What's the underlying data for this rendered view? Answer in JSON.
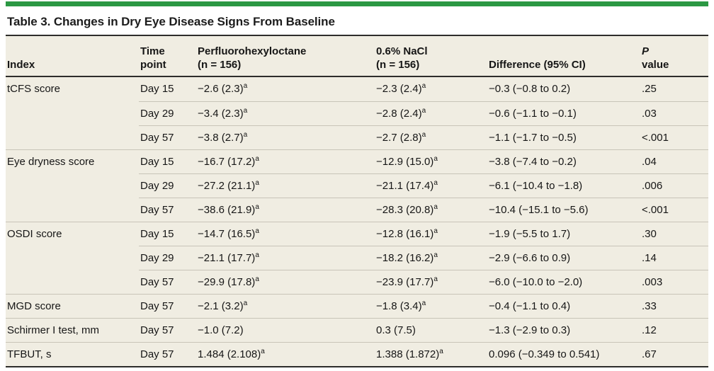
{
  "title": "Table 3. Changes in Dry Eye Disease Signs From Baseline",
  "accent_color": "#2b9843",
  "table_background": "#f0ede2",
  "header": {
    "index": "Index",
    "time_line1": "Time",
    "time_line2": "point",
    "pfho_line1": "Perfluorohexyloctane",
    "pfho_line2": "(n = 156)",
    "nacl_line1": "0.6% NaCl",
    "nacl_line2": "(n = 156)",
    "diff": "Difference (95% CI)",
    "p_italic": "P",
    "p_rest": " value"
  },
  "rows": [
    {
      "index": "tCFS score",
      "time": "Day 15",
      "pfho": {
        "v": "−2.6 (2.3)",
        "sup": "a"
      },
      "nacl": {
        "v": "−2.3 (2.4)",
        "sup": "a"
      },
      "diff": "−0.3 (−0.8 to 0.2)",
      "p": ".25"
    },
    {
      "index": "",
      "time": "Day 29",
      "pfho": {
        "v": "−3.4 (2.3)",
        "sup": "a"
      },
      "nacl": {
        "v": "−2.8 (2.4)",
        "sup": "a"
      },
      "diff": "−0.6 (−1.1 to −0.1)",
      "p": ".03"
    },
    {
      "index": "",
      "time": "Day 57",
      "pfho": {
        "v": "−3.8 (2.7)",
        "sup": "a"
      },
      "nacl": {
        "v": "−2.7 (2.8)",
        "sup": "a"
      },
      "diff": "−1.1 (−1.7 to −0.5)",
      "p": "<.001"
    },
    {
      "index": "Eye dryness score",
      "time": "Day 15",
      "pfho": {
        "v": "−16.7 (17.2)",
        "sup": "a"
      },
      "nacl": {
        "v": "−12.9 (15.0)",
        "sup": "a"
      },
      "diff": "−3.8 (−7.4 to −0.2)",
      "p": ".04"
    },
    {
      "index": "",
      "time": "Day 29",
      "pfho": {
        "v": "−27.2 (21.1)",
        "sup": "a"
      },
      "nacl": {
        "v": "−21.1 (17.4)",
        "sup": "a"
      },
      "diff": "−6.1 (−10.4 to −1.8)",
      "p": ".006"
    },
    {
      "index": "",
      "time": "Day 57",
      "pfho": {
        "v": "−38.6 (21.9)",
        "sup": "a"
      },
      "nacl": {
        "v": "−28.3 (20.8)",
        "sup": "a"
      },
      "diff": "−10.4 (−15.1 to −5.6)",
      "p": "<.001"
    },
    {
      "index": "OSDI score",
      "time": "Day 15",
      "pfho": {
        "v": "−14.7 (16.5)",
        "sup": "a"
      },
      "nacl": {
        "v": "−12.8 (16.1)",
        "sup": "a"
      },
      "diff": "−1.9 (−5.5 to 1.7)",
      "p": ".30"
    },
    {
      "index": "",
      "time": "Day 29",
      "pfho": {
        "v": "−21.1 (17.7)",
        "sup": "a"
      },
      "nacl": {
        "v": "−18.2 (16.2)",
        "sup": "a"
      },
      "diff": "−2.9 (−6.6 to 0.9)",
      "p": ".14"
    },
    {
      "index": "",
      "time": "Day 57",
      "pfho": {
        "v": "−29.9 (17.8)",
        "sup": "a"
      },
      "nacl": {
        "v": "−23.9 (17.7)",
        "sup": "a"
      },
      "diff": "−6.0 (−10.0 to −2.0)",
      "p": ".003"
    },
    {
      "index": "MGD score",
      "time": "Day 57",
      "pfho": {
        "v": "−2.1 (3.2)",
        "sup": "a"
      },
      "nacl": {
        "v": "−1.8 (3.4)",
        "sup": "a"
      },
      "diff": "−0.4 (−1.1 to 0.4)",
      "p": ".33"
    },
    {
      "index": "Schirmer I test, mm",
      "time": "Day 57",
      "pfho": {
        "v": "−1.0 (7.2)"
      },
      "nacl": {
        "v": "0.3 (7.5)"
      },
      "diff": "−1.3 (−2.9 to 0.3)",
      "p": ".12"
    },
    {
      "index": "TFBUT, s",
      "time": "Day 57",
      "pfho": {
        "v": "1.484 (2.108)",
        "sup": "a"
      },
      "nacl": {
        "v": "1.388 (1.872)",
        "sup": "a"
      },
      "diff": "0.096 (−0.349 to 0.541)",
      "p": ".67"
    }
  ]
}
